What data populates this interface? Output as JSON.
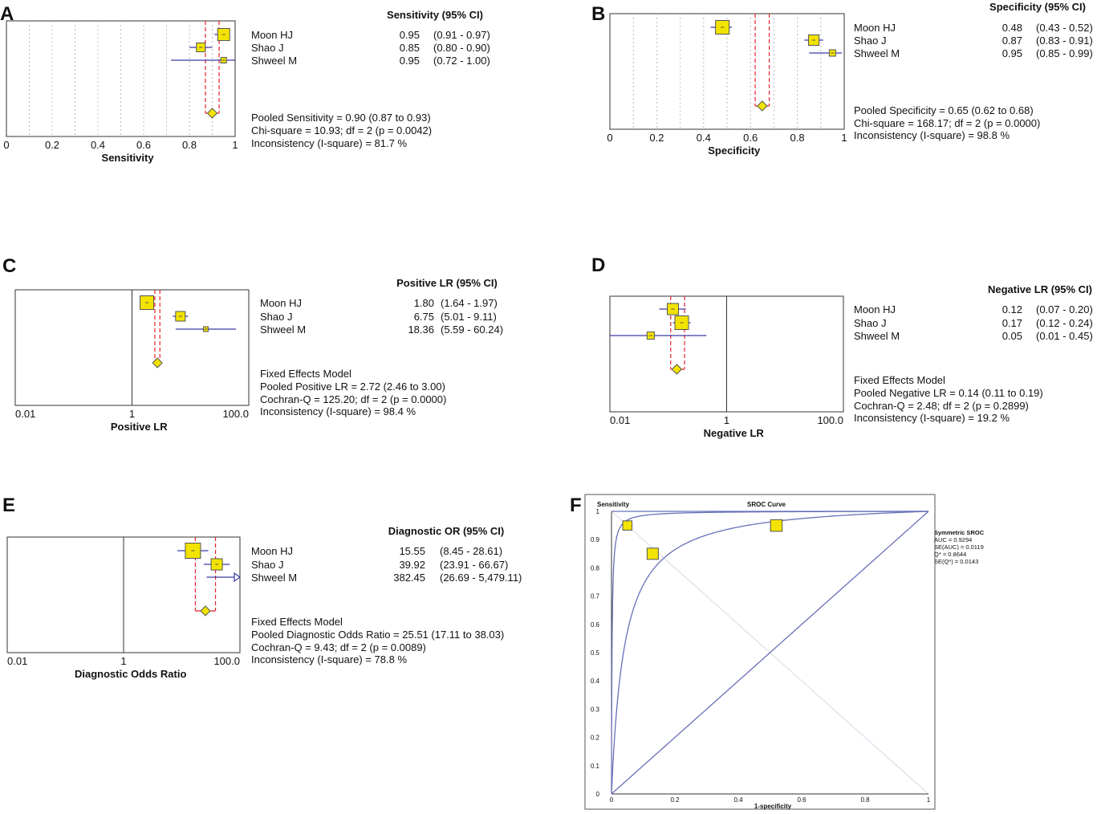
{
  "panel_letters": [
    "A",
    "B",
    "C",
    "D",
    "E",
    "F"
  ],
  "chart_data": [
    {
      "panel": "A",
      "type": "forest",
      "scale": "linear",
      "ticks": [
        "0",
        "0.2",
        "0.4",
        "0.6",
        "0.8",
        "1"
      ],
      "tick_values": [
        0,
        0.2,
        0.4,
        0.6,
        0.8,
        1
      ],
      "xlim": [
        0,
        1
      ],
      "xlabel": "Sensitivity",
      "header": "Sensitivity (95% CI)",
      "studies": [
        {
          "name": "Moon HJ",
          "est": 0.95,
          "lo": 0.91,
          "hi": 0.97,
          "est_text": "0.95",
          "ci_text": "(0.91 - 0.97)"
        },
        {
          "name": "Shao J",
          "est": 0.85,
          "lo": 0.8,
          "hi": 0.9,
          "est_text": "0.85",
          "ci_text": "(0.80 - 0.90)"
        },
        {
          "name": "Shweel M",
          "est": 0.95,
          "lo": 0.72,
          "hi": 1.0,
          "est_text": "0.95",
          "ci_text": "(0.72 - 1.00)"
        }
      ],
      "pooled": {
        "est": 0.9,
        "lo": 0.87,
        "hi": 0.93
      },
      "summary": [
        "Pooled Sensitivity = 0.90 (0.87 to 0.93)",
        "Chi-square = 10.93; df =  2 (p = 0.0042)",
        "Inconsistency (I-square) = 81.7 %"
      ]
    },
    {
      "panel": "B",
      "type": "forest",
      "scale": "linear",
      "ticks": [
        "0",
        "0.2",
        "0.4",
        "0.6",
        "0.8",
        "1"
      ],
      "tick_values": [
        0,
        0.2,
        0.4,
        0.6,
        0.8,
        1
      ],
      "xlim": [
        0,
        1
      ],
      "xlabel": "Specificity",
      "header": "Specificity (95% CI)",
      "studies": [
        {
          "name": "Moon HJ",
          "est": 0.48,
          "lo": 0.43,
          "hi": 0.52,
          "est_text": "0.48",
          "ci_text": "(0.43 - 0.52)"
        },
        {
          "name": "Shao J",
          "est": 0.87,
          "lo": 0.83,
          "hi": 0.91,
          "est_text": "0.87",
          "ci_text": "(0.83 - 0.91)"
        },
        {
          "name": "Shweel M",
          "est": 0.95,
          "lo": 0.85,
          "hi": 0.99,
          "est_text": "0.95",
          "ci_text": "(0.85 - 0.99)"
        }
      ],
      "pooled": {
        "est": 0.65,
        "lo": 0.62,
        "hi": 0.68
      },
      "summary": [
        "Pooled Specificity = 0.65 (0.62 to 0.68)",
        "Chi-square = 168.17; df =  2 (p = 0.0000)",
        "Inconsistency (I-square) = 98.8 %"
      ]
    },
    {
      "panel": "C",
      "type": "forest",
      "scale": "log",
      "ticks": [
        "0.01",
        "1",
        "100.0"
      ],
      "tick_values": [
        0.01,
        1,
        100
      ],
      "xlim": [
        0.01,
        100
      ],
      "xlabel": "Positive LR",
      "header": "Positive LR (95% CI)",
      "studies": [
        {
          "name": "Moon HJ",
          "est": 1.8,
          "lo": 1.64,
          "hi": 1.97,
          "est_text": "1.80",
          "ci_text": "(1.64 - 1.97)"
        },
        {
          "name": "Shao J",
          "est": 6.75,
          "lo": 5.01,
          "hi": 9.11,
          "est_text": "6.75",
          "ci_text": "(5.01 - 9.11)"
        },
        {
          "name": "Shweel M",
          "est": 18.36,
          "lo": 5.59,
          "hi": 60.24,
          "est_text": "18.36",
          "ci_text": "(5.59 - 60.24)"
        }
      ],
      "pooled": {
        "est": 2.72,
        "lo": 2.46,
        "hi": 3.0
      },
      "summary": [
        "Fixed Effects Model",
        "Pooled Positive LR = 2.72 (2.46 to 3.00)",
        "Cochran-Q = 125.20; df =  2 (p = 0.0000)",
        "Inconsistency (I-square) = 98.4 %"
      ]
    },
    {
      "panel": "D",
      "type": "forest",
      "scale": "log",
      "ticks": [
        "0.01",
        "1",
        "100.0"
      ],
      "tick_values": [
        0.01,
        1,
        100
      ],
      "xlim": [
        0.01,
        100
      ],
      "xlabel": "Negative LR",
      "header": "Negative LR (95% CI)",
      "studies": [
        {
          "name": "Moon HJ",
          "est": 0.12,
          "lo": 0.07,
          "hi": 0.2,
          "est_text": "0.12",
          "ci_text": "(0.07 - 0.20)"
        },
        {
          "name": "Shao J",
          "est": 0.17,
          "lo": 0.12,
          "hi": 0.24,
          "est_text": "0.17",
          "ci_text": "(0.12 - 0.24)"
        },
        {
          "name": "Shweel M",
          "est": 0.05,
          "lo": 0.01,
          "hi": 0.45,
          "est_text": "0.05",
          "ci_text": "(0.01 - 0.45)"
        }
      ],
      "pooled": {
        "est": 0.14,
        "lo": 0.11,
        "hi": 0.19
      },
      "summary": [
        "Fixed Effects Model",
        "Pooled Negative LR = 0.14 (0.11 to 0.19)",
        "Cochran-Q = 2.48; df =  2 (p = 0.2899)",
        "Inconsistency (I-square) = 19.2 %"
      ]
    },
    {
      "panel": "E",
      "type": "forest",
      "scale": "log",
      "ticks": [
        "0.01",
        "1",
        "100.0"
      ],
      "tick_values": [
        0.01,
        1,
        100
      ],
      "xlim": [
        0.01,
        100
      ],
      "xlabel": "Diagnostic Odds Ratio",
      "header": "Diagnostic OR (95% CI)",
      "studies": [
        {
          "name": "Moon HJ",
          "est": 15.55,
          "lo": 8.45,
          "hi": 28.61,
          "est_text": "15.55",
          "ci_text": "(8.45 - 28.61)"
        },
        {
          "name": "Shao J",
          "est": 39.92,
          "lo": 23.91,
          "hi": 66.67,
          "est_text": "39.92",
          "ci_text": "(23.91 - 66.67)"
        },
        {
          "name": "Shweel M",
          "est": 382.45,
          "lo": 26.69,
          "hi": 5479.11,
          "est_text": "382.45",
          "ci_text": "(26.69 - 5,479.11)"
        }
      ],
      "pooled": {
        "est": 25.51,
        "lo": 17.11,
        "hi": 38.03
      },
      "summary": [
        "Fixed Effects Model",
        "Pooled Diagnostic Odds Ratio = 25.51 (17.11 to 38.03)",
        "Cochran-Q = 9.43; df =  2 (p = 0.0089)",
        "Inconsistency (I-square) = 78.8 %"
      ]
    },
    {
      "panel": "F",
      "type": "line",
      "title": "SROC Curve",
      "ylabel": "Sensitivity",
      "xlabel": "1-specificity",
      "xlim": [
        0,
        1
      ],
      "ylim": [
        0,
        1
      ],
      "x_ticks": [
        "0",
        "0.2",
        "0.4",
        "0.6",
        "0.8",
        "1"
      ],
      "y_ticks": [
        "0",
        "0.1",
        "0.2",
        "0.3",
        "0.4",
        "0.5",
        "0.6",
        "0.7",
        "0.8",
        "0.9",
        "1"
      ],
      "points": [
        {
          "x": 0.05,
          "y": 0.95
        },
        {
          "x": 0.13,
          "y": 0.85
        },
        {
          "x": 0.52,
          "y": 0.95
        }
      ],
      "point_sizes": [
        0.35,
        0.6,
        0.65
      ],
      "curve_dors": [
        600,
        25.51,
        1
      ],
      "legend": [
        "Symmetric SROC",
        "AUC = 0.9294",
        "SE(AUC) = 0.0119",
        "Q* = 0.8644",
        "SE(Q*) = 0.0143"
      ]
    }
  ],
  "colors": {
    "box_fill": "#f2e300",
    "box_stroke": "#555555",
    "ci_line": "#3a3aa8",
    "pooled_line": "#e8202a",
    "curve": "#6870b8",
    "grid": "#bbbbbb"
  }
}
